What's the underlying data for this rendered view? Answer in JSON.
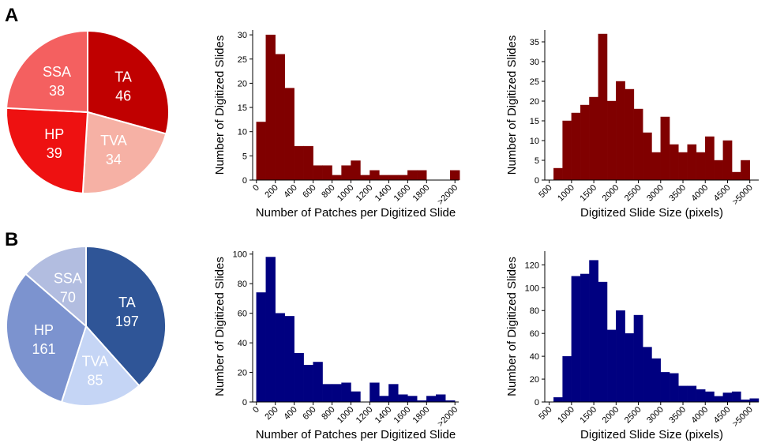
{
  "panels": [
    {
      "letter": "A",
      "pie": {
        "slices": [
          {
            "label": "TA",
            "value": 46,
            "color": "#c00000",
            "text": "#ffffff"
          },
          {
            "label": "TVA",
            "value": 34,
            "color": "#f6b1a5",
            "text": "#ffffff"
          },
          {
            "label": "HP",
            "value": 39,
            "color": "#ee1111",
            "text": "#ffffff"
          },
          {
            "label": "SSA",
            "value": 38,
            "color": "#f46060",
            "text": "#ffffff"
          }
        ]
      }
    },
    {
      "letter": "B",
      "pie": {
        "slices": [
          {
            "label": "TA",
            "value": 197,
            "color": "#2f5597",
            "text": "#ffffff"
          },
          {
            "label": "TVA",
            "value": 85,
            "color": "#c5d5f5",
            "text": "#ffffff"
          },
          {
            "label": "HP",
            "value": 161,
            "color": "#7c93cf",
            "text": "#ffffff"
          },
          {
            "label": "SSA",
            "value": 70,
            "color": "#b2bde0",
            "text": "#ffffff"
          }
        ]
      }
    }
  ],
  "chart_data": [
    {
      "type": "pie",
      "panel": "A",
      "labels": [
        "TA",
        "TVA",
        "HP",
        "SSA"
      ],
      "values": [
        46,
        34,
        39,
        38
      ]
    },
    {
      "type": "bar",
      "panel": "A",
      "color": "#800000",
      "xlabel": "Number of Patches per Digitized Slide",
      "ylabel": "Number of Digitized Slides",
      "xlim": [
        -40,
        2140
      ],
      "ylim": [
        0,
        31
      ],
      "yticks": [
        0,
        5,
        10,
        15,
        20,
        25,
        30
      ],
      "xticks": [
        {
          "v": 0,
          "t": "0"
        },
        {
          "v": 200,
          "t": "200"
        },
        {
          "v": 400,
          "t": "400"
        },
        {
          "v": 600,
          "t": "600"
        },
        {
          "v": 800,
          "t": "800"
        },
        {
          "v": 1000,
          "t": "1000"
        },
        {
          "v": 1200,
          "t": "1200"
        },
        {
          "v": 1400,
          "t": "1400"
        },
        {
          "v": 1600,
          "t": "1600"
        },
        {
          "v": 1800,
          "t": "1800"
        },
        {
          "v": 2100,
          "t": ">2000"
        }
      ],
      "bins": [
        [
          0,
          100,
          12
        ],
        [
          100,
          200,
          30
        ],
        [
          200,
          300,
          26
        ],
        [
          300,
          400,
          19
        ],
        [
          400,
          500,
          7
        ],
        [
          500,
          600,
          7
        ],
        [
          600,
          700,
          3
        ],
        [
          700,
          800,
          3
        ],
        [
          800,
          900,
          1
        ],
        [
          900,
          1000,
          3
        ],
        [
          1000,
          1100,
          4
        ],
        [
          1100,
          1200,
          1
        ],
        [
          1200,
          1300,
          2
        ],
        [
          1300,
          1400,
          1
        ],
        [
          1400,
          1500,
          1
        ],
        [
          1500,
          1600,
          1
        ],
        [
          1600,
          1700,
          2
        ],
        [
          1700,
          1800,
          2
        ],
        [
          2050,
          2150,
          2
        ]
      ]
    },
    {
      "type": "bar",
      "panel": "A",
      "color": "#800000",
      "xlabel": "Digitized Slide Size (pixels)",
      "ylabel": "Number of Digitized Slides",
      "xlim": [
        400,
        5200
      ],
      "ylim": [
        0,
        38
      ],
      "yticks": [
        0,
        5,
        10,
        15,
        20,
        25,
        30,
        35
      ],
      "xticks": [
        {
          "v": 500,
          "t": "500"
        },
        {
          "v": 1000,
          "t": "1000"
        },
        {
          "v": 1500,
          "t": "1500"
        },
        {
          "v": 2000,
          "t": "2000"
        },
        {
          "v": 2500,
          "t": "2500"
        },
        {
          "v": 3000,
          "t": "3000"
        },
        {
          "v": 3500,
          "t": "3500"
        },
        {
          "v": 4000,
          "t": "4000"
        },
        {
          "v": 4500,
          "t": "4500"
        },
        {
          "v": 5000,
          "t": ">5000"
        }
      ],
      "bins": [
        [
          600,
          800,
          3
        ],
        [
          800,
          1000,
          15
        ],
        [
          1000,
          1200,
          17
        ],
        [
          1200,
          1400,
          19
        ],
        [
          1400,
          1600,
          21
        ],
        [
          1600,
          1800,
          37
        ],
        [
          1800,
          2000,
          20
        ],
        [
          2000,
          2200,
          25
        ],
        [
          2200,
          2400,
          23
        ],
        [
          2400,
          2600,
          18
        ],
        [
          2600,
          2800,
          12
        ],
        [
          2800,
          3000,
          7
        ],
        [
          3000,
          3200,
          16
        ],
        [
          3200,
          3400,
          9
        ],
        [
          3400,
          3600,
          7
        ],
        [
          3600,
          3800,
          9
        ],
        [
          3800,
          4000,
          7
        ],
        [
          4000,
          4200,
          11
        ],
        [
          4200,
          4400,
          5
        ],
        [
          4400,
          4600,
          10
        ],
        [
          4600,
          4800,
          2
        ],
        [
          4800,
          5000,
          5
        ]
      ]
    },
    {
      "type": "pie",
      "panel": "B",
      "labels": [
        "TA",
        "TVA",
        "HP",
        "SSA"
      ],
      "values": [
        197,
        85,
        161,
        70
      ]
    },
    {
      "type": "bar",
      "panel": "B",
      "color": "#000080",
      "xlabel": "Number of Patches per Digitized Slide",
      "ylabel": "Number of Digitized Slides",
      "xlim": [
        -40,
        2140
      ],
      "ylim": [
        0,
        102
      ],
      "yticks": [
        0,
        20,
        40,
        60,
        80,
        100
      ],
      "xticks": [
        {
          "v": 0,
          "t": "0"
        },
        {
          "v": 200,
          "t": "200"
        },
        {
          "v": 400,
          "t": "400"
        },
        {
          "v": 600,
          "t": "600"
        },
        {
          "v": 800,
          "t": "800"
        },
        {
          "v": 1000,
          "t": "1000"
        },
        {
          "v": 1200,
          "t": "1200"
        },
        {
          "v": 1400,
          "t": "1400"
        },
        {
          "v": 1600,
          "t": "1600"
        },
        {
          "v": 1800,
          "t": "1800"
        },
        {
          "v": 2100,
          "t": ">2000"
        }
      ],
      "bins": [
        [
          0,
          100,
          74
        ],
        [
          100,
          200,
          98
        ],
        [
          200,
          300,
          60
        ],
        [
          300,
          400,
          58
        ],
        [
          400,
          500,
          33
        ],
        [
          500,
          600,
          25
        ],
        [
          600,
          700,
          27
        ],
        [
          700,
          800,
          12
        ],
        [
          800,
          900,
          12
        ],
        [
          900,
          1000,
          13
        ],
        [
          1000,
          1100,
          7
        ],
        [
          1200,
          1300,
          13
        ],
        [
          1300,
          1400,
          4
        ],
        [
          1400,
          1500,
          12
        ],
        [
          1500,
          1600,
          5
        ],
        [
          1600,
          1700,
          4
        ],
        [
          1700,
          1800,
          1
        ],
        [
          1800,
          1900,
          4
        ],
        [
          1900,
          2000,
          5
        ],
        [
          2000,
          2100,
          1
        ]
      ]
    },
    {
      "type": "bar",
      "panel": "B",
      "color": "#000080",
      "xlabel": "Digitized Slide Size (pixels)",
      "ylabel": "Number of Digitized Slides",
      "xlim": [
        400,
        5200
      ],
      "ylim": [
        0,
        132
      ],
      "yticks": [
        0,
        20,
        40,
        60,
        80,
        100,
        120
      ],
      "xticks": [
        {
          "v": 500,
          "t": "500"
        },
        {
          "v": 1000,
          "t": "1000"
        },
        {
          "v": 1500,
          "t": "1500"
        },
        {
          "v": 2000,
          "t": "2000"
        },
        {
          "v": 2500,
          "t": "2500"
        },
        {
          "v": 3000,
          "t": "3000"
        },
        {
          "v": 3500,
          "t": "3500"
        },
        {
          "v": 4000,
          "t": "4000"
        },
        {
          "v": 4500,
          "t": "4500"
        },
        {
          "v": 5000,
          "t": ">5000"
        }
      ],
      "bins": [
        [
          600,
          800,
          4
        ],
        [
          800,
          1000,
          40
        ],
        [
          1000,
          1200,
          110
        ],
        [
          1200,
          1400,
          112
        ],
        [
          1400,
          1600,
          124
        ],
        [
          1600,
          1800,
          105
        ],
        [
          1800,
          2000,
          63
        ],
        [
          2000,
          2200,
          80
        ],
        [
          2200,
          2400,
          60
        ],
        [
          2400,
          2600,
          76
        ],
        [
          2600,
          2800,
          48
        ],
        [
          2800,
          3000,
          38
        ],
        [
          3000,
          3200,
          26
        ],
        [
          3200,
          3400,
          25
        ],
        [
          3400,
          3600,
          14
        ],
        [
          3600,
          3800,
          14
        ],
        [
          3800,
          4000,
          11
        ],
        [
          4000,
          4200,
          9
        ],
        [
          4200,
          4400,
          5
        ],
        [
          4400,
          4600,
          8
        ],
        [
          4600,
          4800,
          9
        ],
        [
          4800,
          5000,
          2
        ],
        [
          5000,
          5200,
          3
        ]
      ]
    }
  ]
}
